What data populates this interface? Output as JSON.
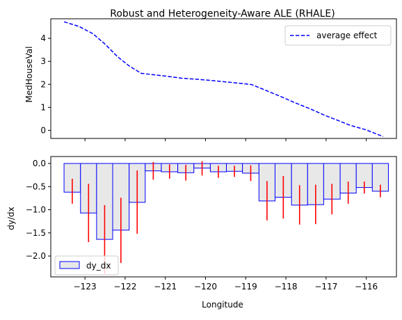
{
  "chart_data": [
    {
      "type": "line",
      "title": "Robust and Heterogeneity-Aware ALE (RHALE)",
      "xlabel": "",
      "ylabel": "MedHouseVal",
      "xlim": [
        -123.85,
        -115.25
      ],
      "ylim": [
        -0.35,
        4.85
      ],
      "yticks": [
        0,
        1,
        2,
        3,
        4
      ],
      "xticks": [
        -123,
        -122,
        -121,
        -120,
        -119,
        -118,
        -117,
        -116
      ],
      "x_tick_labels_shown": false,
      "grid": false,
      "legend": {
        "position": "upper right",
        "entries": [
          "average effect"
        ]
      },
      "series": [
        {
          "name": "average effect",
          "style": "dashed",
          "color": "#0000ff",
          "x": [
            -123.52,
            -123.15,
            -122.8,
            -122.5,
            -122.2,
            -121.9,
            -121.6,
            -121.3,
            -121.0,
            -120.6,
            -120.2,
            -119.8,
            -119.4,
            -119.1,
            -118.85,
            -118.5,
            -118.1,
            -117.8,
            -117.4,
            -117.0,
            -116.7,
            -116.4,
            -116.0,
            -115.58
          ],
          "y": [
            4.72,
            4.52,
            4.2,
            3.75,
            3.22,
            2.8,
            2.48,
            2.42,
            2.36,
            2.27,
            2.22,
            2.16,
            2.09,
            2.04,
            1.99,
            1.74,
            1.45,
            1.22,
            0.94,
            0.63,
            0.43,
            0.22,
            0.02,
            -0.27
          ]
        }
      ]
    },
    {
      "type": "bar",
      "title": "",
      "xlabel": "Longitude",
      "ylabel": "dy/dx",
      "xlim": [
        -123.85,
        -115.25
      ],
      "ylim": [
        -2.45,
        0.15
      ],
      "yticks": [
        0.0,
        -0.5,
        -1.0,
        -1.5,
        -2.0
      ],
      "ytick_labels": [
        "0.0",
        "−0.5",
        "−1.0",
        "−1.5",
        "−2.0"
      ],
      "xticks": [
        -123,
        -122,
        -121,
        -120,
        -119,
        -118,
        -117,
        -116
      ],
      "xtick_labels": [
        "−123",
        "−122",
        "−121",
        "−120",
        "−119",
        "−118",
        "−117",
        "−116"
      ],
      "grid": false,
      "legend": {
        "position": "lower left",
        "entries": [
          "dy_dx"
        ]
      },
      "bar_face_color": "#e8e8e8",
      "bar_edge_color": "#0000ff",
      "error_color": "#ff0000",
      "bins": [
        {
          "x0": -123.52,
          "x1": -123.11,
          "value": -0.62,
          "err_low": -0.87,
          "err_high": -0.33
        },
        {
          "x0": -123.11,
          "x1": -122.71,
          "value": -1.07,
          "err_low": -1.7,
          "err_high": -0.44
        },
        {
          "x0": -122.71,
          "x1": -122.31,
          "value": -1.64,
          "err_low": -2.38,
          "err_high": -0.9
        },
        {
          "x0": -122.31,
          "x1": -121.9,
          "value": -1.44,
          "err_low": -2.15,
          "err_high": -0.74
        },
        {
          "x0": -121.9,
          "x1": -121.5,
          "value": -0.84,
          "err_low": -1.52,
          "err_high": -0.15
        },
        {
          "x0": -121.5,
          "x1": -121.1,
          "value": -0.16,
          "err_low": -0.35,
          "err_high": 0.03
        },
        {
          "x0": -121.1,
          "x1": -120.69,
          "value": -0.18,
          "err_low": -0.33,
          "err_high": -0.02
        },
        {
          "x0": -120.69,
          "x1": -120.29,
          "value": -0.2,
          "err_low": -0.37,
          "err_high": -0.03
        },
        {
          "x0": -120.29,
          "x1": -119.88,
          "value": -0.1,
          "err_low": -0.26,
          "err_high": 0.05
        },
        {
          "x0": -119.88,
          "x1": -119.48,
          "value": -0.18,
          "err_low": -0.31,
          "err_high": -0.05
        },
        {
          "x0": -119.48,
          "x1": -119.08,
          "value": -0.17,
          "err_low": -0.29,
          "err_high": -0.05
        },
        {
          "x0": -119.08,
          "x1": -118.67,
          "value": -0.21,
          "err_low": -0.38,
          "err_high": -0.04
        },
        {
          "x0": -118.67,
          "x1": -118.27,
          "value": -0.81,
          "err_low": -1.23,
          "err_high": -0.38
        },
        {
          "x0": -118.27,
          "x1": -117.86,
          "value": -0.73,
          "err_low": -1.19,
          "err_high": -0.27
        },
        {
          "x0": -117.86,
          "x1": -117.46,
          "value": -0.9,
          "err_low": -1.32,
          "err_high": -0.47
        },
        {
          "x0": -117.46,
          "x1": -117.06,
          "value": -0.89,
          "err_low": -1.31,
          "err_high": -0.46
        },
        {
          "x0": -117.06,
          "x1": -116.65,
          "value": -0.77,
          "err_low": -1.1,
          "err_high": -0.44
        },
        {
          "x0": -116.65,
          "x1": -116.25,
          "value": -0.64,
          "err_low": -0.87,
          "err_high": -0.39
        },
        {
          "x0": -116.25,
          "x1": -115.85,
          "value": -0.52,
          "err_low": -0.65,
          "err_high": -0.39
        },
        {
          "x0": -115.85,
          "x1": -115.45,
          "value": -0.6,
          "err_low": -0.73,
          "err_high": -0.46
        }
      ]
    }
  ]
}
